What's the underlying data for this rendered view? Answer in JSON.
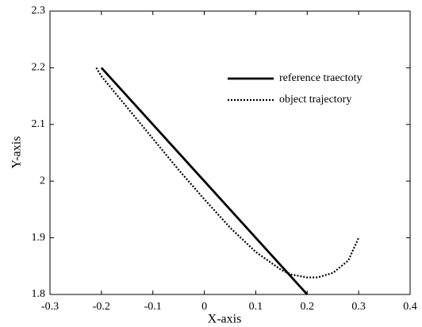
{
  "chart_data": {
    "type": "line",
    "xlabel": "X-axis",
    "ylabel": "Y-axis",
    "series": [
      {
        "name": "reference traectoty",
        "color": "#000000",
        "style": "solid",
        "x": [
          -0.2,
          0.2
        ],
        "values": [
          2.2,
          1.8
        ]
      },
      {
        "name": "object trajectory",
        "color": "#000000",
        "style": "dotted",
        "x": [
          -0.21,
          -0.2,
          -0.15,
          -0.1,
          -0.05,
          0,
          0.05,
          0.1,
          0.15,
          0.17,
          0.2,
          0.22,
          0.25,
          0.28,
          0.3
        ],
        "values": [
          2.2,
          2.185,
          2.13,
          2.075,
          2.02,
          1.968,
          1.918,
          1.875,
          1.843,
          1.835,
          1.83,
          1.83,
          1.838,
          1.86,
          1.9
        ]
      }
    ],
    "xlim": [
      -0.3,
      0.4
    ],
    "xticks": [
      -0.3,
      -0.2,
      -0.1,
      0,
      0.1,
      0.2,
      0.3,
      0.4
    ],
    "ylim": [
      1.8,
      2.3
    ],
    "yticks": [
      1.8,
      1.9,
      2,
      2.1,
      2.2,
      2.3
    ],
    "grid": false,
    "legend": "upper right"
  }
}
